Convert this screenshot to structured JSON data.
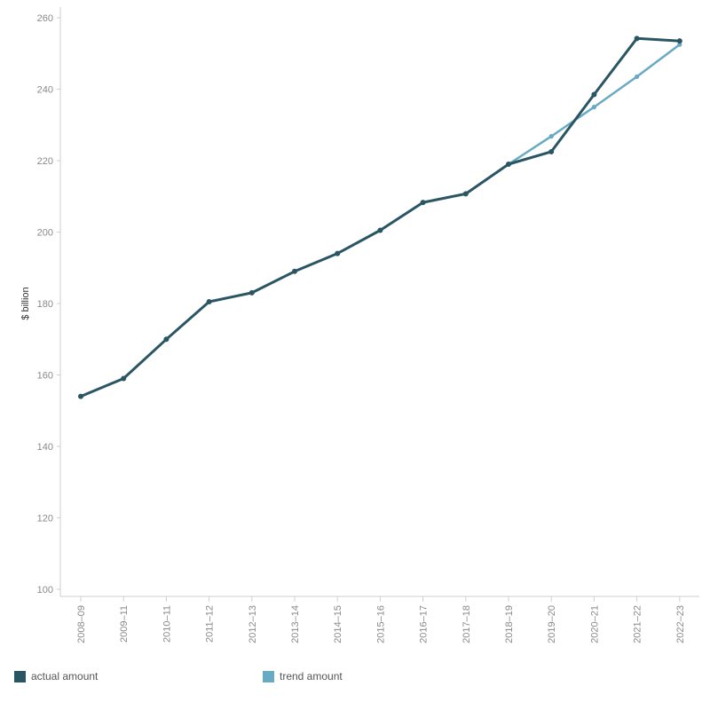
{
  "chart_data": {
    "type": "line",
    "title": "",
    "xlabel": "",
    "ylabel": "$ billion",
    "ylim": [
      100,
      260
    ],
    "yticks": [
      100,
      120,
      140,
      160,
      180,
      200,
      220,
      240,
      260
    ],
    "categories": [
      "2008–09",
      "2009–11",
      "2010–11",
      "2011–12",
      "2012–13",
      "2013–14",
      "2014–15",
      "2015–16",
      "2016–17",
      "2017–18",
      "2018–19",
      "2019–20",
      "2020–21",
      "2021–22",
      "2022–23"
    ],
    "legend_position": "bottom-left",
    "grid": false,
    "series": [
      {
        "name": "actual amount",
        "color": "#2a5563",
        "values": [
          154.0,
          159.0,
          170.0,
          180.5,
          183.0,
          189.0,
          194.0,
          200.5,
          208.3,
          210.7,
          219.0,
          222.5,
          238.5,
          254.2,
          253.5
        ]
      },
      {
        "name": "trend amount",
        "color": "#67aac3",
        "values": [
          null,
          null,
          null,
          null,
          null,
          null,
          null,
          null,
          null,
          null,
          219.0,
          226.8,
          235.0,
          243.5,
          252.5
        ]
      }
    ]
  }
}
